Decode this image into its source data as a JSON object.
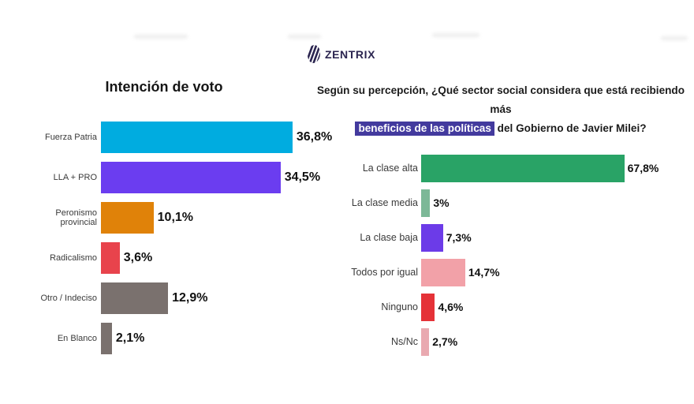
{
  "logo": {
    "name": "ZENTRIX",
    "color": "#2b2550"
  },
  "chart_data": [
    {
      "type": "bar",
      "orientation": "horizontal",
      "title": "Intención de voto",
      "categories": [
        "Fuerza Patria",
        "LLA + PRO",
        "Peronismo provincial",
        "Radicalismo",
        "Otro / Indeciso",
        "En Blanco"
      ],
      "values": [
        36.8,
        34.5,
        10.1,
        3.6,
        12.9,
        2.1
      ],
      "value_labels": [
        "36,8%",
        "34,5%",
        "10,1%",
        "3,6%",
        "12,9%",
        "2,1%"
      ],
      "colors": [
        "#00ACE0",
        "#6B3DF0",
        "#E08209",
        "#E8434C",
        "#7A716E",
        "#7A716E"
      ],
      "xlabel": "",
      "ylabel": "",
      "xlim": [
        0,
        40
      ],
      "grid": false,
      "legend": false
    },
    {
      "type": "bar",
      "orientation": "horizontal",
      "title_line1": "Según su percepción, ¿Qué sector social considera que está recibiendo más",
      "title_highlight": "beneficios de las políticas",
      "title_line2_rest": " del Gobierno de Javier Milei?",
      "highlight_bg": "#433a9e",
      "categories": [
        "La clase alta",
        "La clase media",
        "La clase baja",
        "Todos por igual",
        "Ninguno",
        "Ns/Nc"
      ],
      "values": [
        67.8,
        3,
        7.3,
        14.7,
        4.6,
        2.7
      ],
      "value_labels": [
        "67,8%",
        "3%",
        "7,3%",
        "14,7%",
        "4,6%",
        "2,7%"
      ],
      "colors": [
        "#29A366",
        "#7CB897",
        "#6C3BE8",
        "#F2A1A8",
        "#E53238",
        "#E9A9B0"
      ],
      "xlabel": "",
      "ylabel": "",
      "xlim": [
        0,
        72
      ],
      "grid": false,
      "legend": false
    }
  ]
}
